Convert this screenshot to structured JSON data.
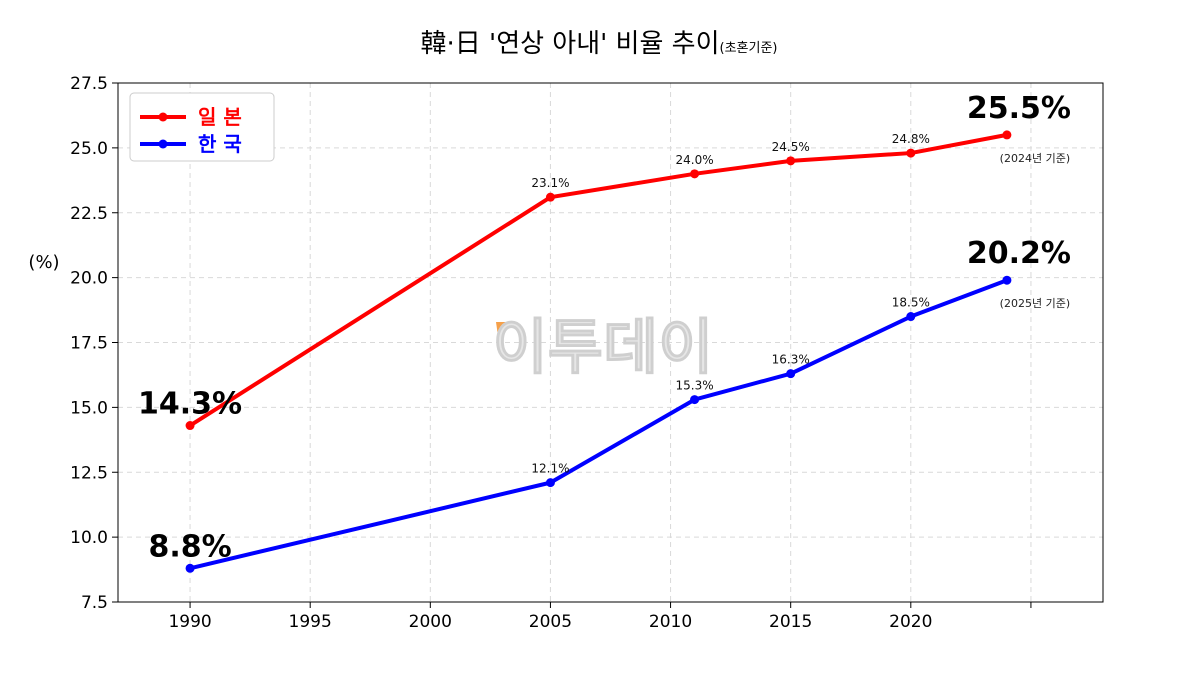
{
  "chart_data": {
    "type": "line",
    "title": "韓·日 '연상 아내' 비율 추이",
    "subtitle": "(초혼기준)",
    "ylabel": "(%)",
    "xlabel": "",
    "xlim": [
      1987,
      2028
    ],
    "ylim": [
      7.5,
      27.5
    ],
    "x_ticks": [
      1990,
      1995,
      2000,
      2005,
      2010,
      2015,
      2020
    ],
    "y_ticks": [
      7.5,
      10.0,
      12.5,
      15.0,
      17.5,
      20.0,
      22.5,
      25.0,
      27.5
    ],
    "grid": true,
    "legend_position": "top-left",
    "series": [
      {
        "name": "일 본",
        "color": "#ff0000",
        "x": [
          1990,
          2005,
          2011,
          2015,
          2020,
          2024
        ],
        "values": [
          14.3,
          23.1,
          24.0,
          24.5,
          24.8,
          25.5
        ],
        "point_labels": [
          "",
          "23.1%",
          "24.0%",
          "24.5%",
          "24.8%",
          ""
        ],
        "start_label": "14.3%",
        "end_label": "25.5%",
        "end_note": "(2024년 기준)"
      },
      {
        "name": "한 국",
        "color": "#0000ff",
        "x": [
          1990,
          2005,
          2011,
          2015,
          2020,
          2024
        ],
        "values": [
          8.8,
          12.1,
          15.3,
          16.3,
          18.5,
          19.9
        ],
        "point_labels": [
          "",
          "12.1%",
          "15.3%",
          "16.3%",
          "18.5%",
          ""
        ],
        "start_label": "8.8%",
        "end_label": "20.2%",
        "end_note": "(2025년 기준)"
      }
    ],
    "watermark": "이투데이",
    "watermark_accent": "#f5a04a"
  }
}
